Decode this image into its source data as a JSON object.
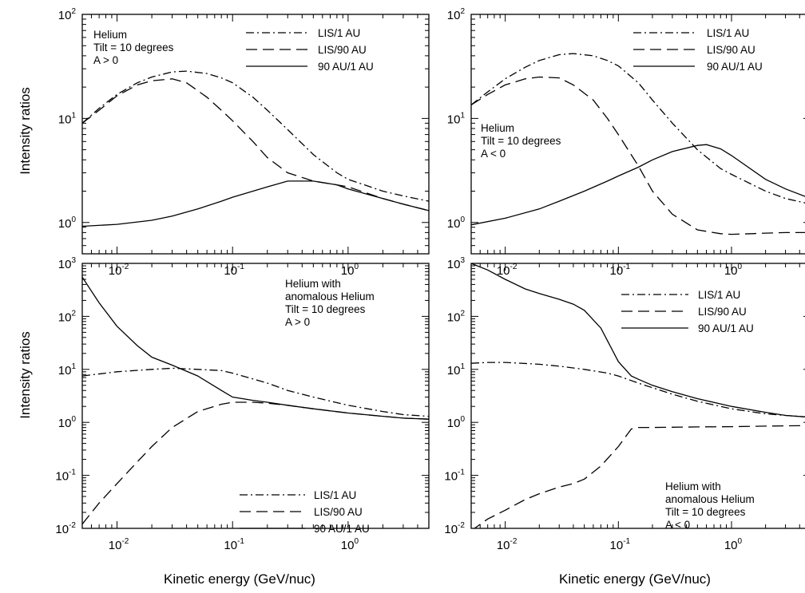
{
  "figure": {
    "x_axis_title": "Kinetic energy (GeV/nuc)",
    "y_axis_title": "Intensity ratios"
  },
  "styles": {
    "LIS/1 AU": "10 4 2 4",
    "LIS/90 AU": "14 7",
    "90 AU/1 AU": ""
  },
  "chart_data": [
    {
      "type": "line",
      "panel": "top-left",
      "x_scale": "log",
      "y_scale": "log",
      "xlim": [
        0.005,
        5
      ],
      "ylim": [
        0.5,
        100
      ],
      "xticks": [
        {
          "base": "10",
          "exp": "-2",
          "v": 0.01
        },
        {
          "base": "10",
          "exp": "-1",
          "v": 0.1
        },
        {
          "base": "10",
          "exp": "0",
          "v": 1
        }
      ],
      "yticks": [
        {
          "base": "10",
          "exp": "0",
          "v": 1
        },
        {
          "base": "10",
          "exp": "1",
          "v": 10
        },
        {
          "base": "10",
          "exp": "2",
          "v": 100
        }
      ],
      "annotation": [
        "Helium",
        "Tilt = 10 degrees",
        "A > 0"
      ],
      "legend": [
        "LIS/1 AU",
        "LIS/90 AU",
        "90 AU/1 AU"
      ],
      "legend_position": "top-right",
      "series": [
        {
          "name": "LIS/1 AU",
          "x": [
            0.005,
            0.007,
            0.01,
            0.015,
            0.02,
            0.03,
            0.04,
            0.06,
            0.08,
            0.1,
            0.15,
            0.2,
            0.3,
            0.5,
            0.8,
            1,
            2,
            3,
            5
          ],
          "y": [
            9,
            12.5,
            17,
            22,
            25,
            28,
            28.5,
            27,
            24.5,
            22,
            16,
            12,
            7.8,
            4.5,
            3,
            2.6,
            2,
            1.8,
            1.6
          ]
        },
        {
          "name": "LIS/90 AU",
          "x": [
            0.005,
            0.007,
            0.01,
            0.015,
            0.02,
            0.03,
            0.04,
            0.06,
            0.08,
            0.1,
            0.15,
            0.2,
            0.3,
            0.5,
            0.8,
            1,
            2,
            3,
            5
          ],
          "y": [
            9,
            12,
            16.5,
            21,
            23,
            24,
            22,
            16,
            12,
            9.5,
            6,
            4.2,
            3,
            2.5,
            2.3,
            2.2,
            1.7,
            1.5,
            1.3
          ]
        },
        {
          "name": "90 AU/1 AU",
          "x": [
            0.005,
            0.01,
            0.02,
            0.03,
            0.05,
            0.08,
            0.1,
            0.2,
            0.3,
            0.5,
            0.8,
            1,
            2,
            3,
            5
          ],
          "y": [
            0.92,
            0.96,
            1.05,
            1.15,
            1.35,
            1.6,
            1.75,
            2.2,
            2.5,
            2.5,
            2.3,
            2.1,
            1.7,
            1.5,
            1.3
          ]
        }
      ]
    },
    {
      "type": "line",
      "panel": "top-right",
      "x_scale": "log",
      "y_scale": "log",
      "xlim": [
        0.005,
        5
      ],
      "ylim": [
        0.5,
        100
      ],
      "xticks": [
        {
          "base": "10",
          "exp": "-2",
          "v": 0.01
        },
        {
          "base": "10",
          "exp": "-1",
          "v": 0.1
        },
        {
          "base": "10",
          "exp": "0",
          "v": 1
        }
      ],
      "yticks": [
        {
          "base": "10",
          "exp": "0",
          "v": 1
        },
        {
          "base": "10",
          "exp": "1",
          "v": 10
        },
        {
          "base": "10",
          "exp": "2",
          "v": 100
        }
      ],
      "annotation": [
        "Helium",
        "Tilt = 10 degrees",
        "A < 0"
      ],
      "legend": [
        "LIS/1 AU",
        "LIS/90 AU",
        "90 AU/1 AU"
      ],
      "legend_position": "top-right",
      "series": [
        {
          "name": "LIS/1 AU",
          "x": [
            0.005,
            0.007,
            0.01,
            0.015,
            0.02,
            0.03,
            0.04,
            0.06,
            0.08,
            0.1,
            0.15,
            0.2,
            0.3,
            0.5,
            0.8,
            1,
            2,
            3,
            5
          ],
          "y": [
            13.5,
            18,
            24,
            31,
            36,
            41,
            42,
            40,
            36,
            32,
            22,
            15,
            9,
            5,
            3.3,
            2.9,
            2,
            1.7,
            1.5
          ]
        },
        {
          "name": "LIS/90 AU",
          "x": [
            0.005,
            0.007,
            0.01,
            0.015,
            0.02,
            0.03,
            0.04,
            0.06,
            0.08,
            0.1,
            0.15,
            0.2,
            0.3,
            0.5,
            0.8,
            1,
            1.5,
            2,
            3,
            5
          ],
          "y": [
            13.5,
            17,
            21,
            24,
            25,
            24.5,
            21,
            15,
            10,
            7,
            3.5,
            2,
            1.2,
            0.85,
            0.78,
            0.77,
            0.78,
            0.79,
            0.8,
            0.8
          ]
        },
        {
          "name": "90 AU/1 AU",
          "x": [
            0.005,
            0.01,
            0.02,
            0.03,
            0.05,
            0.08,
            0.1,
            0.15,
            0.2,
            0.3,
            0.5,
            0.6,
            0.8,
            1,
            2,
            3,
            5
          ],
          "y": [
            0.95,
            1.1,
            1.35,
            1.6,
            2,
            2.5,
            2.8,
            3.4,
            4,
            4.8,
            5.5,
            5.6,
            5.1,
            4.4,
            2.6,
            2.1,
            1.7
          ]
        }
      ]
    },
    {
      "type": "line",
      "panel": "bottom-left",
      "x_scale": "log",
      "y_scale": "log",
      "xlim": [
        0.005,
        5
      ],
      "ylim": [
        0.01,
        1000
      ],
      "xticks": [
        {
          "base": "10",
          "exp": "-2",
          "v": 0.01
        },
        {
          "base": "10",
          "exp": "-1",
          "v": 0.1
        },
        {
          "base": "10",
          "exp": "0",
          "v": 1
        }
      ],
      "yticks": [
        {
          "base": "10",
          "exp": "-2",
          "v": 0.01
        },
        {
          "base": "10",
          "exp": "-1",
          "v": 0.1
        },
        {
          "base": "10",
          "exp": "0",
          "v": 1
        },
        {
          "base": "10",
          "exp": "1",
          "v": 10
        },
        {
          "base": "10",
          "exp": "2",
          "v": 100
        },
        {
          "base": "10",
          "exp": "3",
          "v": 1000
        }
      ],
      "annotation": [
        "Helium with",
        "anomalous Helium",
        "Tilt = 10 degrees",
        "A > 0"
      ],
      "legend": [
        "LIS/1 AU",
        "LIS/90 AU",
        "90 AU/1 AU"
      ],
      "legend_position": "bottom-right",
      "series": [
        {
          "name": "LIS/1 AU",
          "x": [
            0.005,
            0.01,
            0.02,
            0.03,
            0.05,
            0.08,
            0.1,
            0.2,
            0.3,
            0.5,
            1,
            2,
            3,
            5
          ],
          "y": [
            7.5,
            9,
            10,
            10.5,
            10,
            9.5,
            8.5,
            5.5,
            4,
            3,
            2.1,
            1.6,
            1.4,
            1.3
          ]
        },
        {
          "name": "LIS/90 AU",
          "x": [
            0.005,
            0.007,
            0.01,
            0.015,
            0.02,
            0.03,
            0.05,
            0.08,
            0.1,
            0.15,
            0.2,
            0.3,
            0.5,
            1,
            2,
            3,
            5
          ],
          "y": [
            0.012,
            0.03,
            0.07,
            0.18,
            0.35,
            0.8,
            1.6,
            2.2,
            2.4,
            2.4,
            2.3,
            2.1,
            1.8,
            1.5,
            1.3,
            1.2,
            1.15
          ]
        },
        {
          "name": "90 AU/1 AU",
          "x": [
            0.005,
            0.007,
            0.01,
            0.015,
            0.02,
            0.03,
            0.05,
            0.08,
            0.1,
            0.15,
            0.2,
            0.3,
            0.5,
            1,
            2,
            3,
            5
          ],
          "y": [
            550,
            180,
            65,
            28,
            17,
            12,
            7.5,
            4,
            3,
            2.6,
            2.4,
            2.1,
            1.8,
            1.5,
            1.3,
            1.2,
            1.15
          ]
        }
      ]
    },
    {
      "type": "line",
      "panel": "bottom-right",
      "x_scale": "log",
      "y_scale": "log",
      "xlim": [
        0.005,
        5
      ],
      "ylim": [
        0.01,
        1000
      ],
      "xticks": [
        {
          "base": "10",
          "exp": "-2",
          "v": 0.01
        },
        {
          "base": "10",
          "exp": "-1",
          "v": 0.1
        },
        {
          "base": "10",
          "exp": "0",
          "v": 1
        }
      ],
      "yticks": [
        {
          "base": "10",
          "exp": "-2",
          "v": 0.01
        },
        {
          "base": "10",
          "exp": "-1",
          "v": 0.1
        },
        {
          "base": "10",
          "exp": "0",
          "v": 1
        },
        {
          "base": "10",
          "exp": "1",
          "v": 10
        },
        {
          "base": "10",
          "exp": "2",
          "v": 100
        },
        {
          "base": "10",
          "exp": "3",
          "v": 1000
        }
      ],
      "annotation": [
        "Helium with",
        "anomalous Helium",
        "Tilt = 10 degrees",
        "A < 0"
      ],
      "legend": [
        "LIS/1 AU",
        "LIS/90 AU",
        "90 AU/1 AU"
      ],
      "legend_position": "top-right",
      "series": [
        {
          "name": "LIS/1 AU",
          "x": [
            0.005,
            0.007,
            0.01,
            0.02,
            0.03,
            0.05,
            0.08,
            0.1,
            0.15,
            0.2,
            0.3,
            0.5,
            1,
            2,
            3,
            5
          ],
          "y": [
            13,
            13.5,
            13.5,
            12.5,
            11.5,
            10,
            8.5,
            7.5,
            5.5,
            4.5,
            3.4,
            2.5,
            1.8,
            1.45,
            1.35,
            1.25
          ]
        },
        {
          "name": "LIS/90 AU",
          "x": [
            0.005,
            0.007,
            0.01,
            0.015,
            0.02,
            0.03,
            0.04,
            0.05,
            0.07,
            0.1,
            0.13,
            0.15,
            0.2,
            0.5,
            1,
            2,
            5
          ],
          "y": [
            0.009,
            0.015,
            0.022,
            0.035,
            0.045,
            0.06,
            0.07,
            0.085,
            0.15,
            0.35,
            0.75,
            0.8,
            0.8,
            0.82,
            0.83,
            0.85,
            0.87
          ]
        },
        {
          "name": "90 AU/1 AU",
          "x": [
            0.005,
            0.007,
            0.01,
            0.015,
            0.02,
            0.03,
            0.04,
            0.05,
            0.07,
            0.1,
            0.13,
            0.15,
            0.2,
            0.3,
            0.5,
            1,
            2,
            3,
            5
          ],
          "y": [
            1000,
            750,
            500,
            330,
            270,
            210,
            170,
            130,
            60,
            14,
            7.5,
            6.5,
            5,
            3.8,
            2.8,
            2,
            1.55,
            1.35,
            1.25
          ]
        }
      ]
    }
  ]
}
